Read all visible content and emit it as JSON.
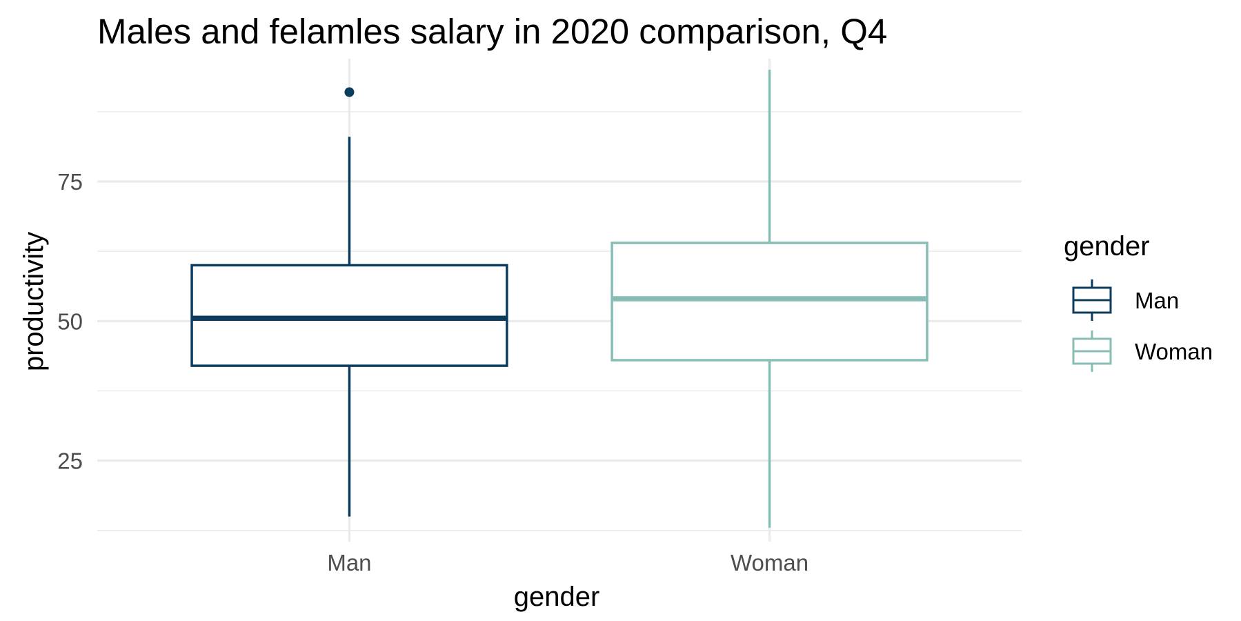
{
  "chart_data": {
    "type": "boxplot",
    "title": "Males and felamles salary in 2020 comparison, Q4",
    "xlabel": "gender",
    "ylabel": "productivity",
    "categories": [
      "Man",
      "Woman"
    ],
    "ylim": [
      10.5,
      97
    ],
    "y_ticks": [
      25,
      50,
      75
    ],
    "y_tick_labels": [
      "25",
      "50",
      "75"
    ],
    "grid": true,
    "legend": {
      "title": "gender",
      "position": "right",
      "entries": [
        "Man",
        "Woman"
      ]
    },
    "series": [
      {
        "name": "Man",
        "color": "#0b3c5d",
        "min": 15,
        "q1": 42,
        "median": 50.5,
        "q3": 60,
        "max": 83,
        "outliers": [
          91
        ]
      },
      {
        "name": "Woman",
        "color": "#88bdb6",
        "min": 13,
        "q1": 43,
        "median": 54,
        "q3": 64,
        "max": 95,
        "outliers": []
      }
    ]
  }
}
